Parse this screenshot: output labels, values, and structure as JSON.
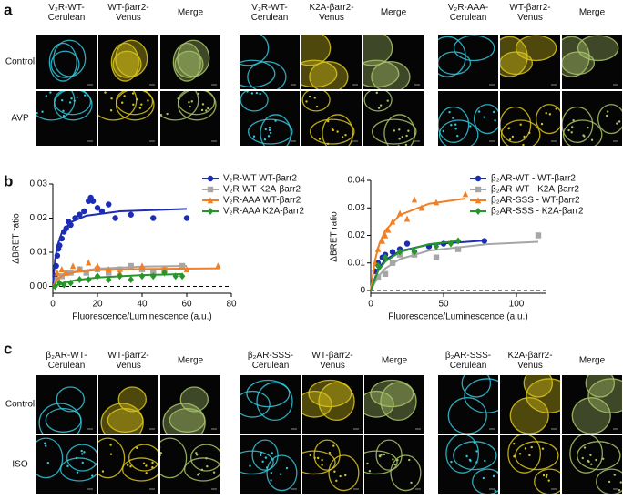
{
  "panel_labels": [
    "a",
    "b",
    "c"
  ],
  "panels": [
    {
      "groups": [
        {
          "headers": [
            [
              "V₂R-WT-",
              "Cerulean"
            ],
            [
              "WT-βarr2-",
              "Venus"
            ],
            [
              "Merge"
            ]
          ]
        },
        {
          "headers": [
            [
              "V₂R-WT-",
              "Cerulean"
            ],
            [
              "K2A-βarr2-",
              "Venus"
            ],
            [
              "Merge"
            ]
          ]
        },
        {
          "headers": [
            [
              "V₂R-AAA-",
              "Cerulean"
            ],
            [
              "WT-βarr2-",
              "Venus"
            ],
            [
              "Merge"
            ]
          ]
        }
      ],
      "rows": [
        "Control",
        "AVP"
      ]
    },
    {
      "groups": [
        {
          "headers": [
            [
              "β₂AR-WT-",
              "Cerulean"
            ],
            [
              "WT-βarr2-",
              "Venus"
            ],
            [
              "Merge"
            ]
          ]
        },
        {
          "headers": [
            [
              "β₂AR-SSS-",
              "Cerulean"
            ],
            [
              "WT-βarr2-",
              "Venus"
            ],
            [
              "Merge"
            ]
          ]
        },
        {
          "headers": [
            [
              "β₂AR-SSS-",
              "Cerulean"
            ],
            [
              "K2A-βarr2-",
              "Venus"
            ],
            [
              "Merge"
            ]
          ]
        }
      ],
      "rows": [
        "Control",
        "ISO"
      ]
    }
  ],
  "chart_data": [
    {
      "type": "scatter",
      "ylabel": "ΔBRET ratio",
      "xlabel": "Fluorescence/Luminescence (a.u.)",
      "xlim": [
        0,
        80
      ],
      "xticks": [
        0,
        20,
        40,
        60,
        80
      ],
      "ylim": [
        -0.002,
        0.03
      ],
      "yticks": [
        {
          "value": 0,
          "label": "0.00"
        },
        0.01,
        0.02,
        0.03
      ],
      "zero_line": true,
      "series": [
        {
          "name": "V₂R-WT WT-βarr2",
          "color": "#1c2db4",
          "marker": "circle",
          "x": [
            1,
            1.5,
            2,
            2.5,
            3,
            4,
            5,
            6,
            7,
            8,
            10,
            12,
            14,
            16,
            17,
            18,
            20,
            22,
            25,
            28,
            35,
            45,
            60
          ],
          "values": [
            0.003,
            0.006,
            0.009,
            0.011,
            0.012,
            0.014,
            0.016,
            0.017,
            0.019,
            0.018,
            0.02,
            0.021,
            0.022,
            0.025,
            0.026,
            0.025,
            0.023,
            0.022,
            0.024,
            0.02,
            0.021,
            0.02,
            0.02
          ],
          "fit_x": [
            0,
            1,
            2,
            4,
            8,
            15,
            30,
            60
          ],
          "fit_values": [
            0,
            0.0078,
            0.0118,
            0.0157,
            0.0188,
            0.0207,
            0.022,
            0.0227
          ]
        },
        {
          "name": "V₂R-WT K2A-βarr2",
          "color": "#a6a6a6",
          "marker": "square",
          "x": [
            2,
            4,
            6,
            8,
            12,
            15,
            20,
            25,
            30,
            35,
            40,
            45,
            50,
            58
          ],
          "values": [
            0.002,
            0.003,
            0.004,
            0.004,
            0.005,
            0.004,
            0.005,
            0.004,
            0.005,
            0.006,
            0.005,
            0.004,
            0.005,
            0.006
          ],
          "fit_x": [
            0,
            2,
            5,
            10,
            20,
            40,
            60
          ],
          "fit_values": [
            0,
            0.0019,
            0.0033,
            0.0043,
            0.0052,
            0.0058,
            0.006
          ]
        },
        {
          "name": "V₂R-AAA WT-βarr2",
          "color": "#f07f26",
          "marker": "triangle",
          "x": [
            2,
            4,
            6,
            9,
            12,
            16,
            20,
            25,
            30,
            40,
            50,
            60,
            74
          ],
          "values": [
            0.004,
            0.005,
            0.004,
            0.006,
            0.005,
            0.007,
            0.006,
            0.005,
            0.004,
            0.006,
            0.005,
            0.005,
            0.006
          ],
          "fit_x": [
            0,
            2,
            5,
            10,
            20,
            40,
            75
          ],
          "fit_values": [
            0,
            0.0022,
            0.0034,
            0.0042,
            0.0048,
            0.0051,
            0.0053
          ]
        },
        {
          "name": "V₂R-AAA K2A-βarr2",
          "color": "#27962a",
          "marker": "diamond",
          "x": [
            1,
            3,
            5,
            8,
            12,
            16,
            20,
            25,
            30,
            35,
            40,
            45,
            50,
            55,
            58
          ],
          "values": [
            0,
            0.001,
            0.0005,
            0.001,
            0.002,
            0.002,
            0.003,
            0.002,
            0.003,
            0.002,
            0.003,
            0.003,
            0.004,
            0.003,
            0.003
          ],
          "fit_x": [
            0,
            5,
            10,
            20,
            40,
            58
          ],
          "fit_values": [
            0,
            0.0011,
            0.0018,
            0.0026,
            0.0033,
            0.0036
          ]
        }
      ]
    },
    {
      "type": "scatter",
      "ylabel": "ΔBRET ratio",
      "xlabel": "Fluorescence/Luminescence (a.u.)",
      "xlim": [
        0,
        120
      ],
      "xticks": [
        0,
        50,
        100
      ],
      "ylim": [
        -0.001,
        0.04
      ],
      "yticks": [
        0,
        0.01,
        0.02,
        0.03,
        0.04
      ],
      "zero_line": true,
      "series": [
        {
          "name": "β₂AR-WT - WT-βarr2",
          "color": "#1c2db4",
          "marker": "circle",
          "x": [
            3,
            5,
            8,
            10,
            15,
            20,
            25,
            30,
            40,
            50,
            78
          ],
          "values": [
            0.007,
            0.01,
            0.012,
            0.013,
            0.014,
            0.015,
            0.017,
            0.014,
            0.016,
            0.017,
            0.018
          ],
          "fit_x": [
            0,
            5,
            10,
            20,
            40,
            80
          ],
          "fit_values": [
            0,
            0.0077,
            0.0111,
            0.0143,
            0.0167,
            0.0182
          ]
        },
        {
          "name": "β₂AR-WT - K2A-βarr2",
          "color": "#a6a6a6",
          "marker": "square",
          "x": [
            5,
            10,
            15,
            20,
            30,
            45,
            60,
            115
          ],
          "values": [
            0.005,
            0.006,
            0.01,
            0.013,
            0.013,
            0.012,
            0.015,
            0.02
          ],
          "fit_x": [
            0,
            5,
            10,
            20,
            40,
            80,
            115
          ],
          "fit_values": [
            0,
            0.005,
            0.008,
            0.0114,
            0.0145,
            0.0168,
            0.0177
          ]
        },
        {
          "name": "β₂AR-SSS - WT-βarr2",
          "color": "#f07f26",
          "marker": "triangle",
          "x": [
            3,
            5,
            8,
            10,
            12,
            15,
            20,
            25,
            30,
            35,
            45,
            65
          ],
          "values": [
            0.01,
            0.015,
            0.018,
            0.02,
            0.022,
            0.025,
            0.028,
            0.026,
            0.033,
            0.03,
            0.032,
            0.035
          ],
          "fit_x": [
            0,
            3,
            6,
            10,
            20,
            40,
            65
          ],
          "fit_values": [
            0,
            0.0111,
            0.0171,
            0.0218,
            0.0274,
            0.0315,
            0.0334
          ]
        },
        {
          "name": "β₂AR-SSS - K2A-βarr2",
          "color": "#27962a",
          "marker": "diamond",
          "x": [
            5,
            10,
            20,
            30,
            45,
            55,
            60
          ],
          "values": [
            0.009,
            0.012,
            0.014,
            0.014,
            0.016,
            0.017,
            0.018
          ],
          "fit_x": [
            0,
            5,
            10,
            20,
            40,
            60
          ],
          "fit_values": [
            0,
            0.007,
            0.0105,
            0.014,
            0.0168,
            0.018
          ]
        }
      ]
    }
  ]
}
